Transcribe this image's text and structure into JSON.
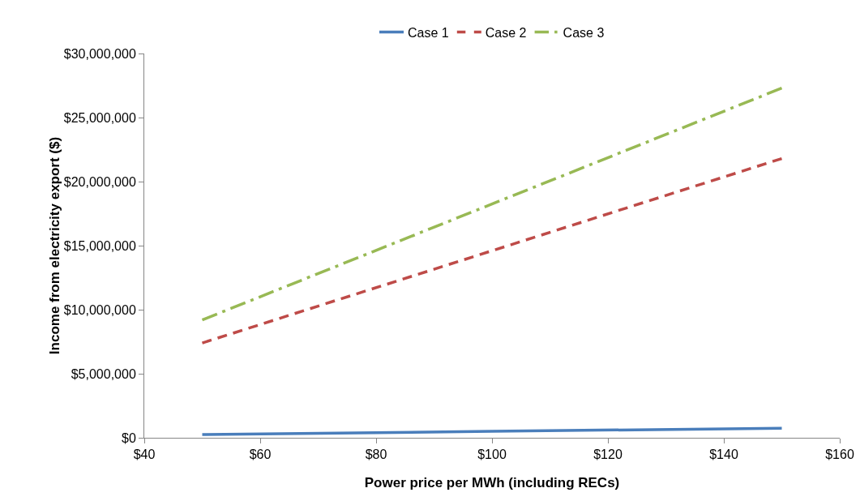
{
  "chart_data": {
    "type": "line",
    "xlabel": "Power price per MWh (including RECs)",
    "ylabel": "Income from electricity export ($)",
    "x": [
      50,
      100,
      150
    ],
    "series": [
      {
        "name": "Case 1",
        "color": "#4a7ebb",
        "values": [
          250000,
          500000,
          750000
        ],
        "line_style": "solid"
      },
      {
        "name": "Case 2",
        "color": "#be4b48",
        "values": [
          7400000,
          14600000,
          21800000
        ],
        "line_style": "dashed"
      },
      {
        "name": "Case 3",
        "color": "#98b954",
        "values": [
          9200000,
          18250000,
          27300000
        ],
        "line_style": "dashdot"
      }
    ],
    "xlim": [
      40,
      160
    ],
    "xticks": [
      {
        "value": 40,
        "label": "$40"
      },
      {
        "value": 60,
        "label": "$60"
      },
      {
        "value": 80,
        "label": "$80"
      },
      {
        "value": 100,
        "label": "$100"
      },
      {
        "value": 120,
        "label": "$120"
      },
      {
        "value": 140,
        "label": "$140"
      },
      {
        "value": 160,
        "label": "$160"
      }
    ],
    "ylim": [
      0,
      30000000
    ],
    "yticks": [
      {
        "value": 0,
        "label": "$0"
      },
      {
        "value": 5000000,
        "label": "$5,000,000"
      },
      {
        "value": 10000000,
        "label": "$10,000,000"
      },
      {
        "value": 15000000,
        "label": "$15,000,000"
      },
      {
        "value": 20000000,
        "label": "$20,000,000"
      },
      {
        "value": 25000000,
        "label": "$25,000,000"
      },
      {
        "value": 30000000,
        "label": "$30,000,000"
      }
    ],
    "grid": false,
    "legend": "top",
    "marker": "none"
  }
}
